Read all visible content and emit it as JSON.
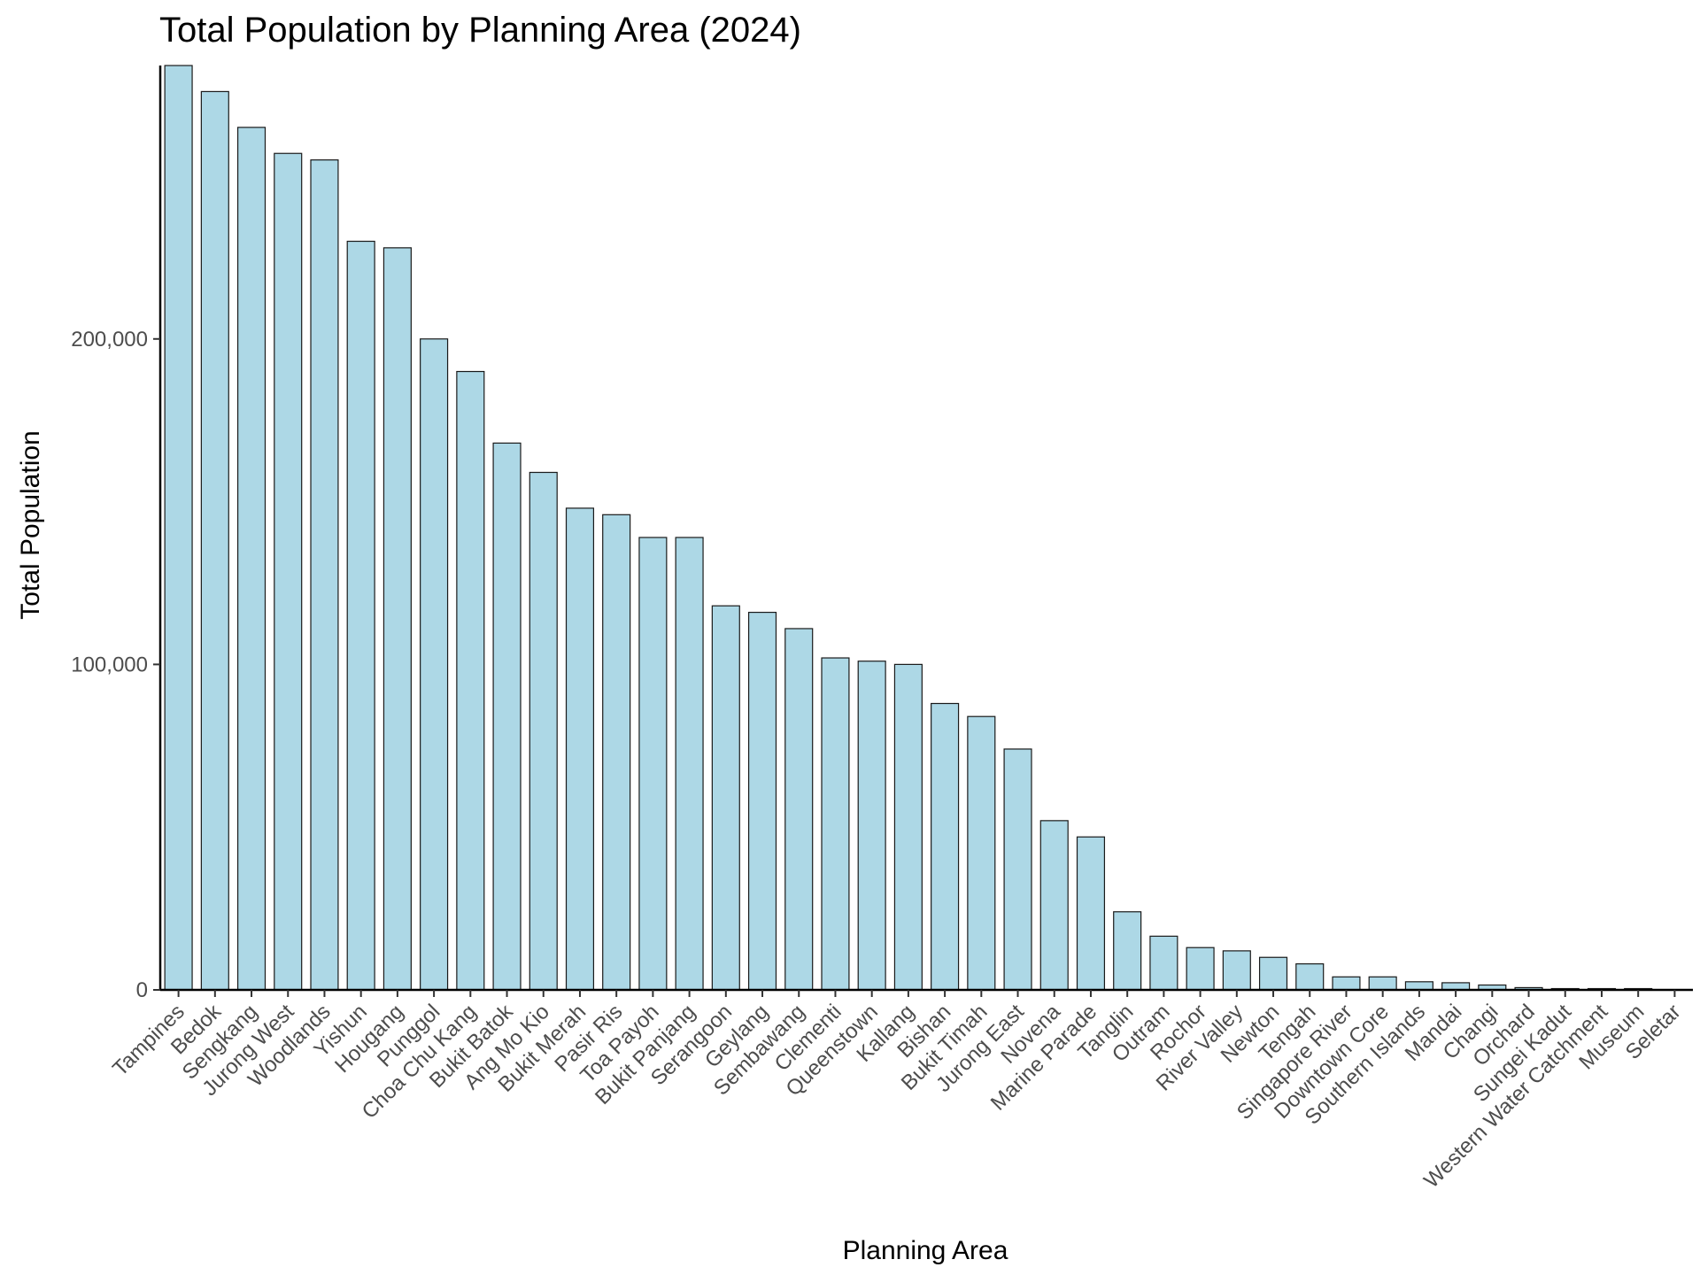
{
  "chart_data": {
    "type": "bar",
    "title": "Total Population by Planning Area (2024)",
    "xlabel": "Planning Area",
    "ylabel": "Total Population",
    "ylim": [
      0,
      284000
    ],
    "yticks": [
      0,
      100000,
      200000
    ],
    "ytick_labels": [
      "0",
      "100,000",
      "200,000"
    ],
    "grid": false,
    "bar_color": "#add8e6",
    "bar_border_color": "#1a1a1a",
    "categories": [
      "Tampines",
      "Bedok",
      "Sengkang",
      "Jurong West",
      "Woodlands",
      "Yishun",
      "Hougang",
      "Punggol",
      "Choa Chu Kang",
      "Bukit Batok",
      "Ang Mo Kio",
      "Bukit Merah",
      "Pasir Ris",
      "Toa Payoh",
      "Bukit Panjang",
      "Serangoon",
      "Geylang",
      "Sembawang",
      "Clementi",
      "Queenstown",
      "Kallang",
      "Bishan",
      "Bukit Timah",
      "Jurong East",
      "Novena",
      "Marine Parade",
      "Tanglin",
      "Outram",
      "Rochor",
      "River Valley",
      "Newton",
      "Tengah",
      "Singapore River",
      "Downtown Core",
      "Southern Islands",
      "Mandai",
      "Changi",
      "Orchard",
      "Sungei Kadut",
      "Western Water Catchment",
      "Museum",
      "Seletar"
    ],
    "values": [
      284000,
      276000,
      265000,
      257000,
      255000,
      230000,
      228000,
      200000,
      190000,
      168000,
      159000,
      148000,
      146000,
      139000,
      139000,
      118000,
      116000,
      111000,
      102000,
      101000,
      100000,
      88000,
      84000,
      74000,
      52000,
      47000,
      24000,
      16500,
      13000,
      12000,
      10000,
      8000,
      4000,
      4000,
      2500,
      2200,
      1500,
      700,
      400,
      400,
      400,
      100
    ]
  }
}
